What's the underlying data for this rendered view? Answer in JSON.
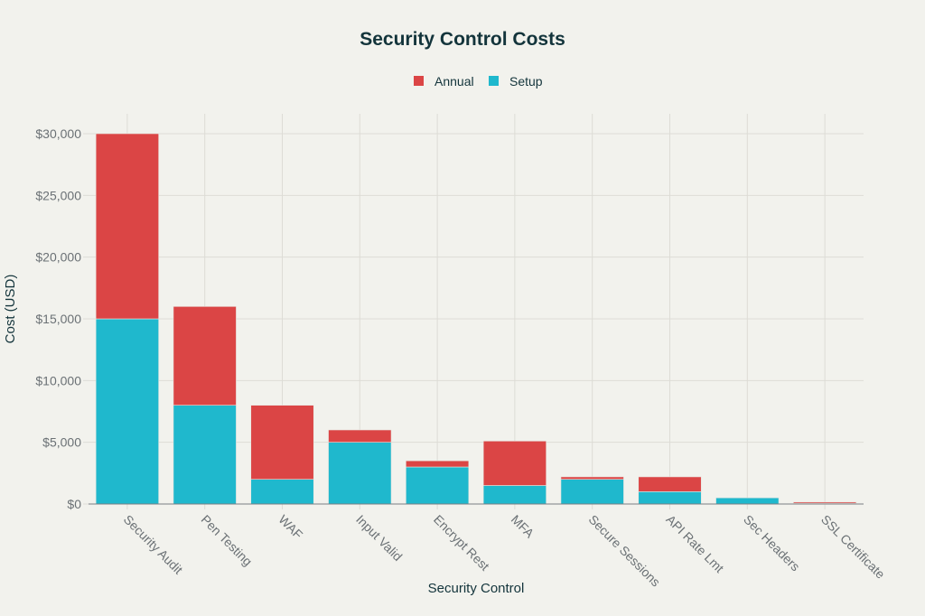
{
  "chart_data": {
    "type": "bar",
    "stacked": true,
    "title": "Security Control Costs",
    "xlabel": "Security Control",
    "ylabel": "Cost (USD)",
    "ylim": [
      0,
      30000
    ],
    "yticks": [
      0,
      5000,
      10000,
      15000,
      20000,
      25000,
      30000
    ],
    "ytick_labels": [
      "$0",
      "$5,000",
      "$10,000",
      "$15,000",
      "$20,000",
      "$25,000",
      "$30,000"
    ],
    "grid": true,
    "legend_position": "top-center",
    "categories": [
      "Security Audit",
      "Pen Testing",
      "WAF",
      "Input Valid",
      "Encrypt Rest",
      "MFA",
      "Secure Sessions",
      "API Rate Lmt",
      "Sec Headers",
      "SSL Certificate"
    ],
    "series": [
      {
        "name": "Setup",
        "color": "#1fb8cd",
        "values": [
          15000,
          8000,
          2000,
          5000,
          3000,
          1500,
          2000,
          1000,
          500,
          50
        ]
      },
      {
        "name": "Annual",
        "color": "#db4545",
        "values": [
          15000,
          8000,
          6000,
          1000,
          500,
          3600,
          200,
          1200,
          0,
          100
        ]
      }
    ],
    "legend": [
      {
        "name": "Annual",
        "color": "#db4545"
      },
      {
        "name": "Setup",
        "color": "#1fb8cd"
      }
    ]
  }
}
